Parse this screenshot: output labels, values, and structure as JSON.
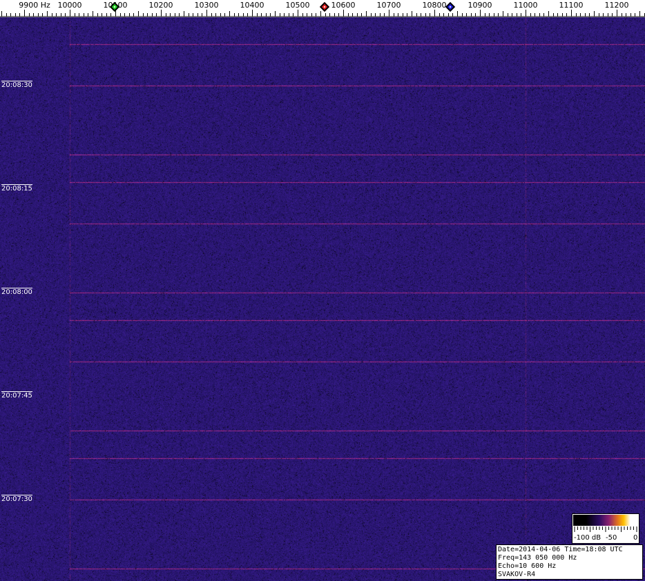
{
  "freq_axis": {
    "unit": "Hz",
    "labels": [
      "9900",
      "10000",
      "10100",
      "10200",
      "10300",
      "10400",
      "10500",
      "10600",
      "10700",
      "10800",
      "10900",
      "11000",
      "11100",
      "11200"
    ]
  },
  "time_labels": [
    "20:08:30",
    "20:08:15",
    "20:08:00",
    "20:07:45",
    "20:07:30"
  ],
  "markers": [
    {
      "name": "green",
      "freq": 10100,
      "color": "#20d020"
    },
    {
      "name": "red",
      "freq": 10575,
      "color": "#e02020"
    },
    {
      "name": "blue",
      "freq": 10850,
      "color": "#2020e0"
    }
  ],
  "legend": {
    "min": "-100 dB",
    "mid": "-50",
    "max": "0"
  },
  "info": {
    "line1": "Date=2014-04-06 Time=18:08 UTC",
    "line2": "Freq=143 050 000 Hz",
    "line3": "Echo=10 600 Hz",
    "line4": "SVAKOV-R4"
  },
  "colors": {
    "background": "#22157a",
    "signal": "#c04080"
  }
}
